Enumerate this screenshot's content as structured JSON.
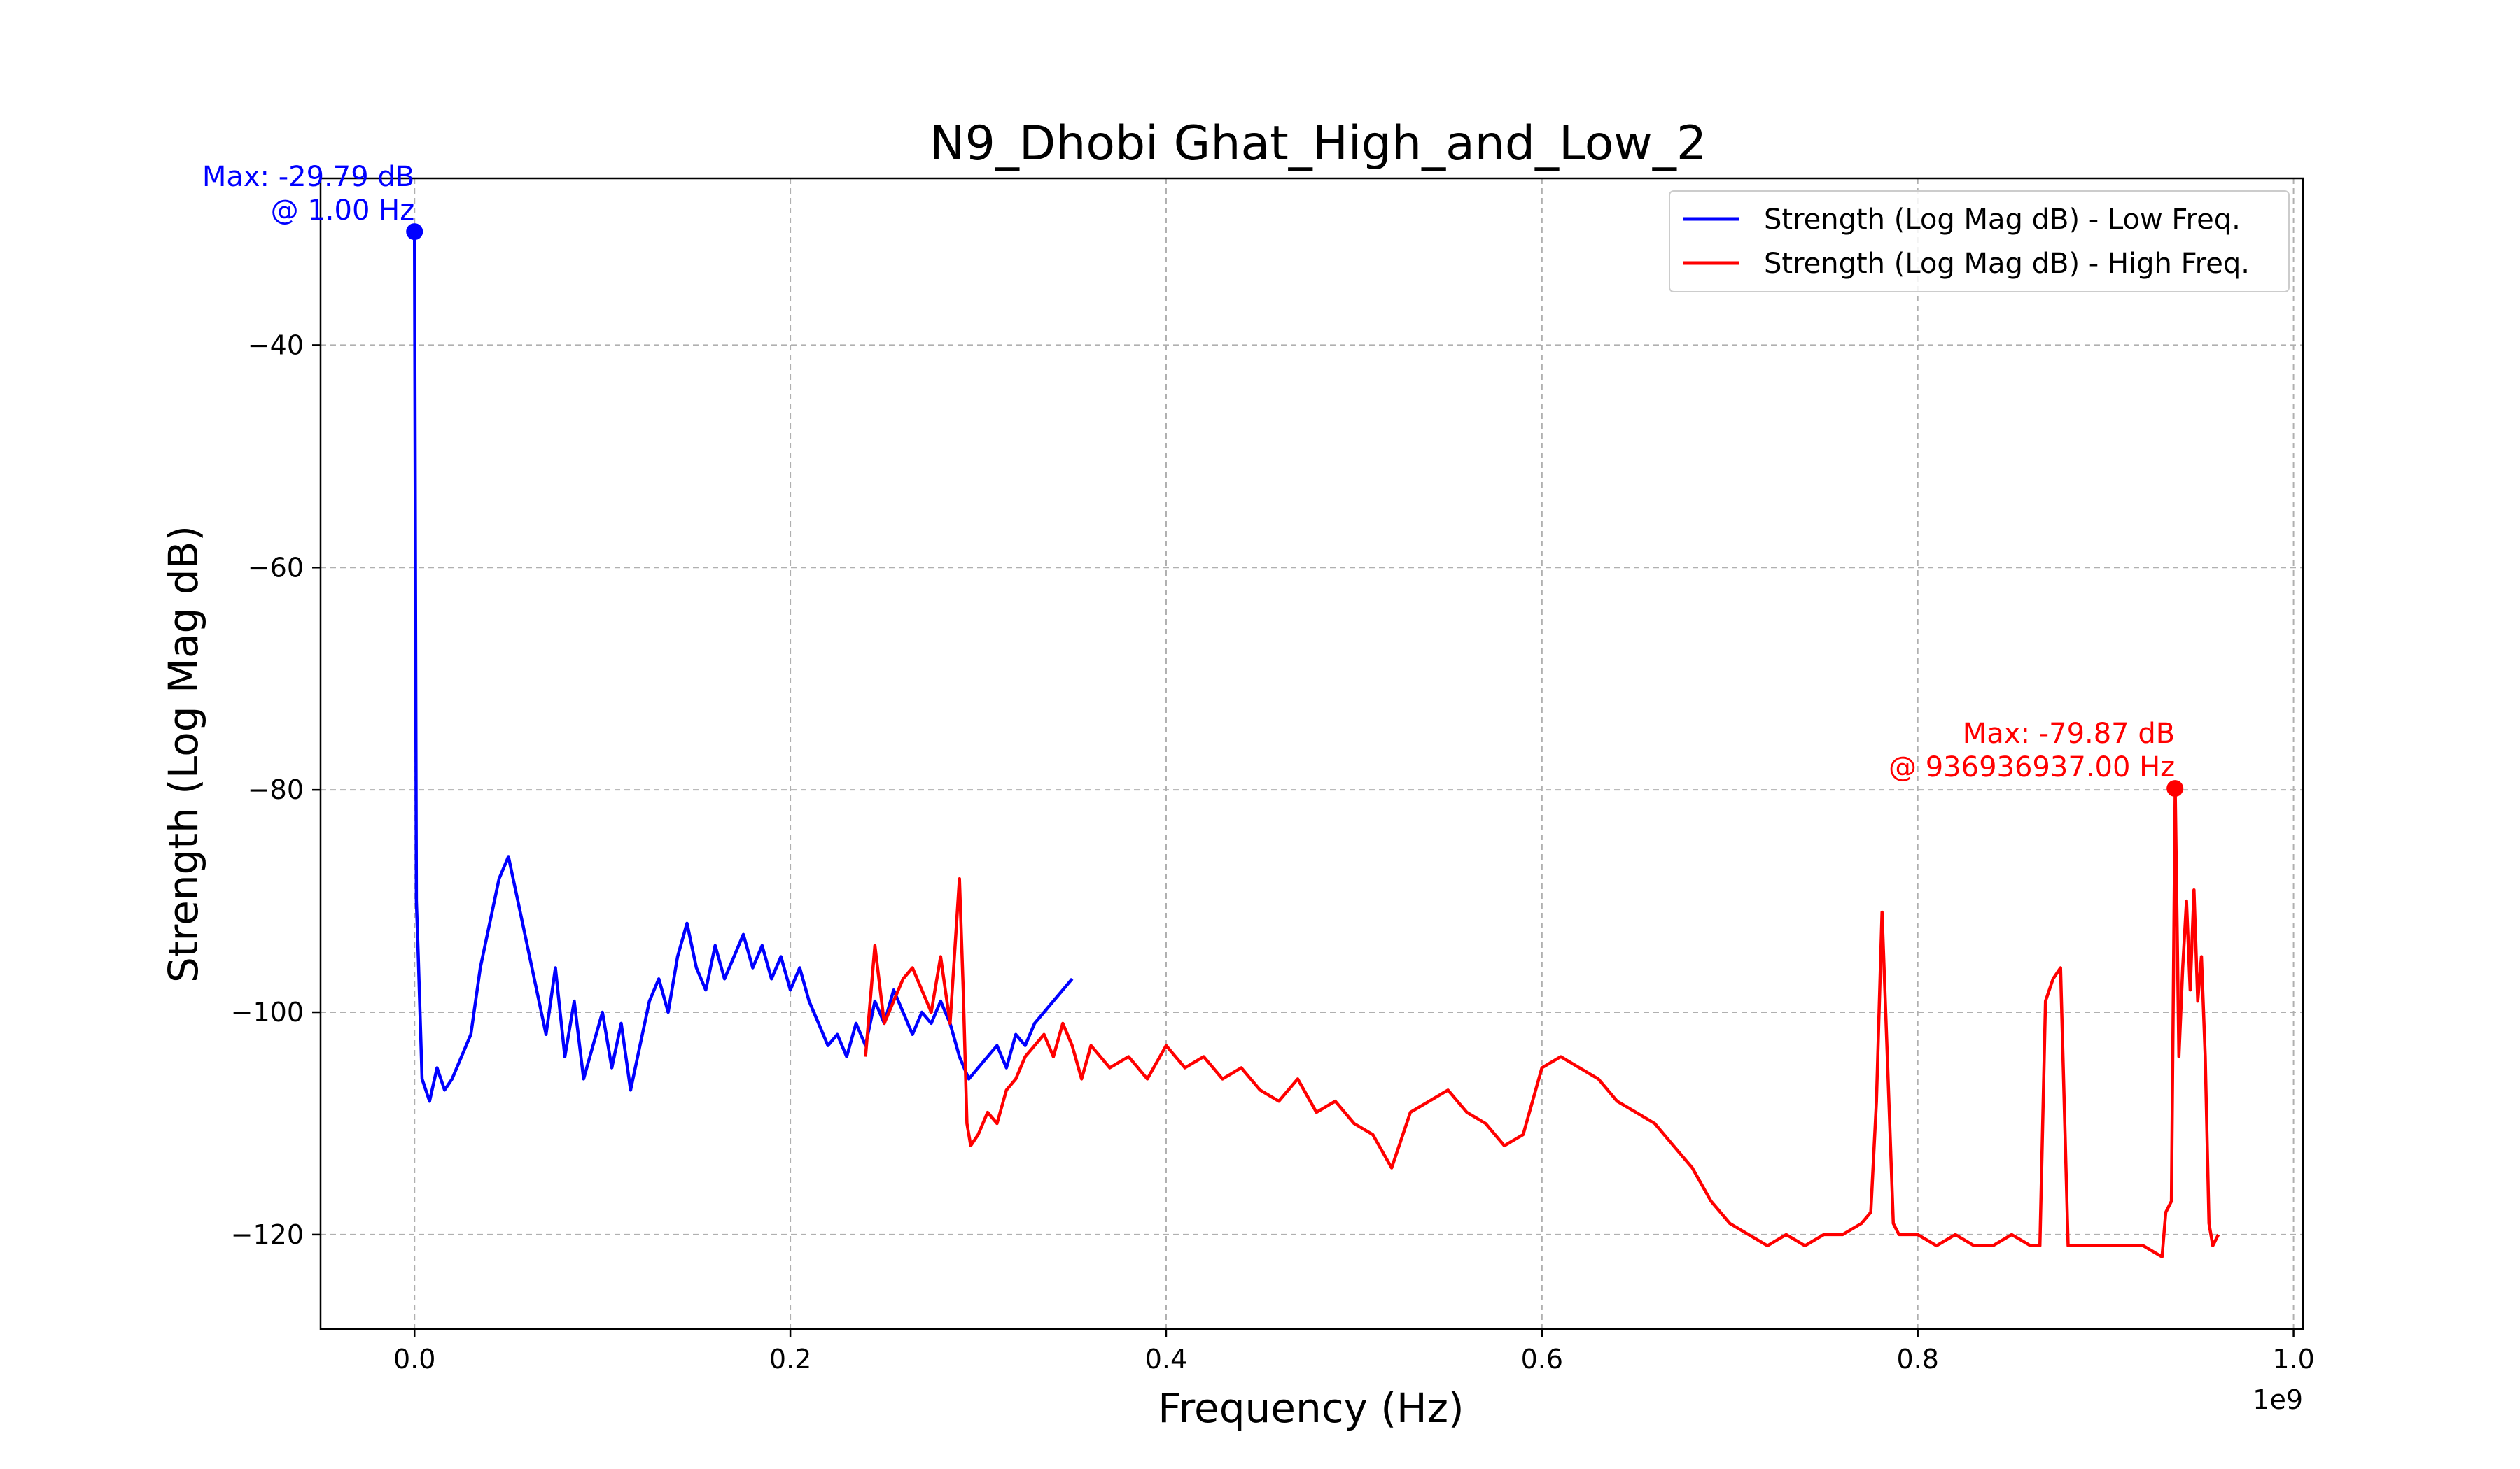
{
  "chart_data": {
    "type": "line",
    "title": "N9_Dhobi Ghat_High_and_Low_2",
    "xlabel": "Frequency (Hz)",
    "ylabel": "Strength (Log Mag dB)",
    "x_offset_label": "1e9",
    "xlim": [
      -0.05,
      1.005
    ],
    "ylim": [
      -128.5,
      -25
    ],
    "xticks": [
      0.0,
      0.2,
      0.4,
      0.6,
      0.8,
      1.0
    ],
    "xtick_labels": [
      "0.0",
      "0.2",
      "0.4",
      "0.6",
      "0.8",
      "1.0"
    ],
    "yticks": [
      -40,
      -60,
      -80,
      -100,
      -120
    ],
    "ytick_labels": [
      "−40",
      "−60",
      "−80",
      "−100",
      "−120"
    ],
    "grid": true,
    "legend_position": "top-right",
    "series": [
      {
        "name": "Strength (Log Mag dB) - Low Freq.",
        "color": "#0000ff",
        "x": [
          0.0,
          0.001,
          0.002,
          0.004,
          0.008,
          0.012,
          0.016,
          0.02,
          0.025,
          0.03,
          0.035,
          0.04,
          0.045,
          0.05,
          0.055,
          0.06,
          0.065,
          0.07,
          0.075,
          0.08,
          0.085,
          0.09,
          0.095,
          0.1,
          0.105,
          0.11,
          0.115,
          0.12,
          0.125,
          0.13,
          0.135,
          0.14,
          0.145,
          0.15,
          0.155,
          0.16,
          0.165,
          0.17,
          0.175,
          0.18,
          0.185,
          0.19,
          0.195,
          0.2,
          0.205,
          0.21,
          0.215,
          0.22,
          0.225,
          0.23,
          0.235,
          0.24,
          0.245,
          0.25,
          0.255,
          0.26,
          0.265,
          0.27,
          0.275,
          0.28,
          0.285,
          0.29,
          0.295,
          0.3,
          0.305,
          0.31,
          0.315,
          0.32,
          0.325,
          0.33,
          0.335,
          0.34,
          0.345,
          0.35
        ],
        "y": [
          -29.79,
          -90,
          -95,
          -106,
          -108,
          -105,
          -107,
          -106,
          -104,
          -102,
          -96,
          -92,
          -88,
          -86,
          -90,
          -94,
          -98,
          -102,
          -96,
          -104,
          -99,
          -106,
          -103,
          -100,
          -105,
          -101,
          -107,
          -103,
          -99,
          -97,
          -100,
          -95,
          -92,
          -96,
          -98,
          -94,
          -97,
          -95,
          -93,
          -96,
          -94,
          -97,
          -95,
          -98,
          -96,
          -99,
          -101,
          -103,
          -102,
          -104,
          -101,
          -103,
          -99,
          -101,
          -98,
          -100,
          -102,
          -100,
          -101,
          -99,
          -101,
          -104,
          -106,
          -105,
          -104,
          -103,
          -105,
          -102,
          -103,
          -101,
          -100,
          -99,
          -98,
          -97
        ]
      },
      {
        "name": "Strength (Log Mag dB) - High Freq.",
        "color": "#ff0000",
        "x": [
          0.24,
          0.245,
          0.25,
          0.255,
          0.26,
          0.265,
          0.27,
          0.275,
          0.28,
          0.285,
          0.29,
          0.292,
          0.294,
          0.296,
          0.3,
          0.305,
          0.31,
          0.315,
          0.32,
          0.325,
          0.33,
          0.335,
          0.34,
          0.345,
          0.35,
          0.355,
          0.36,
          0.365,
          0.37,
          0.38,
          0.39,
          0.4,
          0.41,
          0.42,
          0.43,
          0.44,
          0.45,
          0.46,
          0.47,
          0.48,
          0.49,
          0.5,
          0.51,
          0.52,
          0.53,
          0.54,
          0.55,
          0.56,
          0.57,
          0.58,
          0.59,
          0.6,
          0.61,
          0.62,
          0.63,
          0.64,
          0.65,
          0.66,
          0.67,
          0.68,
          0.69,
          0.7,
          0.71,
          0.72,
          0.73,
          0.74,
          0.75,
          0.76,
          0.77,
          0.775,
          0.778,
          0.781,
          0.784,
          0.787,
          0.79,
          0.8,
          0.81,
          0.82,
          0.83,
          0.84,
          0.85,
          0.86,
          0.865,
          0.868,
          0.872,
          0.876,
          0.88,
          0.883,
          0.89,
          0.9,
          0.91,
          0.92,
          0.93,
          0.932,
          0.935,
          0.937,
          0.939,
          0.941,
          0.943,
          0.945,
          0.947,
          0.949,
          0.951,
          0.953,
          0.955,
          0.957,
          0.96
        ],
        "y": [
          -104,
          -94,
          -101,
          -99,
          -97,
          -96,
          -98,
          -100,
          -95,
          -101,
          -88,
          -98,
          -110,
          -112,
          -111,
          -109,
          -110,
          -107,
          -106,
          -104,
          -103,
          -102,
          -104,
          -101,
          -103,
          -106,
          -103,
          -104,
          -105,
          -104,
          -106,
          -103,
          -105,
          -104,
          -106,
          -105,
          -107,
          -108,
          -106,
          -109,
          -108,
          -110,
          -111,
          -114,
          -109,
          -108,
          -107,
          -109,
          -110,
          -112,
          -111,
          -105,
          -104,
          -105,
          -106,
          -108,
          -109,
          -110,
          -112,
          -114,
          -117,
          -119,
          -120,
          -121,
          -120,
          -121,
          -120,
          -120,
          -119,
          -118,
          -108,
          -91,
          -105,
          -119,
          -120,
          -120,
          -121,
          -120,
          -121,
          -121,
          -120,
          -121,
          -121,
          -99,
          -97,
          -96,
          -121,
          -121,
          -121,
          -121,
          -121,
          -121,
          -122,
          -118,
          -117,
          -79.87,
          -104,
          -96,
          -90,
          -98,
          -89,
          -99,
          -95,
          -104,
          -119,
          -121,
          -120
        ]
      }
    ],
    "annotations": [
      {
        "line1": "Max: -29.79 dB",
        "line2": "@ 1.00 Hz",
        "x": 0.0,
        "y": -29.79,
        "color": "#0000ff"
      },
      {
        "line1": "Max: -79.87 dB",
        "line2": "@ 936936937.00 Hz",
        "x": 0.9369,
        "y": -79.87,
        "color": "#ff0000"
      }
    ]
  }
}
